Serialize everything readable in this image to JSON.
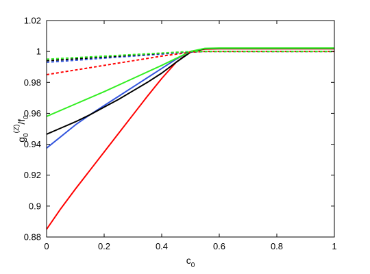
{
  "chart_data": {
    "type": "line",
    "xlabel": "c",
    "xlabel_sub": "0",
    "ylabel_parts": {
      "g": "g",
      "g_sub": "0",
      "g_sup": "(Z)",
      "slash": "/f",
      "f_sub": "0"
    },
    "xlim": [
      0,
      1
    ],
    "ylim": [
      0.88,
      1.02
    ],
    "xticks": [
      0,
      0.2,
      0.4,
      0.6,
      0.8,
      1
    ],
    "xtick_labels": [
      "0",
      "0.2",
      "0.4",
      "0.6",
      "0.8",
      "1"
    ],
    "yticks": [
      0.88,
      0.9,
      0.92,
      0.94,
      0.96,
      0.98,
      1,
      1.02
    ],
    "ytick_labels": [
      "0.88",
      "0.9",
      "0.92",
      "0.94",
      "0.96",
      "0.98",
      "1",
      "1.02"
    ],
    "grid": false,
    "series": [
      {
        "color": "#ff0000",
        "style": "solid",
        "x": [
          0,
          0.05,
          0.1,
          0.15,
          0.2,
          0.25,
          0.3,
          0.35,
          0.4,
          0.45,
          0.5,
          0.55,
          0.6,
          0.7,
          0.8,
          0.9,
          1
        ],
        "y": [
          0.885,
          0.8985,
          0.911,
          0.923,
          0.935,
          0.947,
          0.959,
          0.971,
          0.9825,
          0.993,
          1.0,
          1.0015,
          1.0017,
          1.0017,
          1.0017,
          1.0017,
          1.0017
        ]
      },
      {
        "color": "#3355dd",
        "style": "solid",
        "x": [
          0,
          0.05,
          0.1,
          0.15,
          0.2,
          0.25,
          0.3,
          0.35,
          0.4,
          0.45,
          0.5,
          0.55,
          0.6,
          0.7,
          0.8,
          0.9,
          1
        ],
        "y": [
          0.9375,
          0.945,
          0.9525,
          0.959,
          0.965,
          0.971,
          0.977,
          0.983,
          0.989,
          0.995,
          1.0,
          1.0018,
          1.002,
          1.002,
          1.002,
          1.002,
          1.002
        ]
      },
      {
        "color": "#000000",
        "style": "solid",
        "x": [
          0,
          0.05,
          0.1,
          0.15,
          0.2,
          0.25,
          0.3,
          0.35,
          0.4,
          0.45,
          0.5,
          0.55,
          0.6,
          0.7,
          0.8,
          0.9,
          1
        ],
        "y": [
          0.9465,
          0.9505,
          0.9545,
          0.959,
          0.964,
          0.969,
          0.9745,
          0.98,
          0.986,
          0.993,
          0.9995,
          1.0018,
          1.002,
          1.002,
          1.002,
          1.002,
          1.002
        ]
      },
      {
        "color": "#33ee22",
        "style": "solid",
        "x": [
          0,
          0.1,
          0.2,
          0.3,
          0.4,
          0.45,
          0.5,
          0.55,
          0.6,
          0.7,
          0.8,
          0.9,
          1
        ],
        "y": [
          0.958,
          0.966,
          0.974,
          0.9825,
          0.991,
          0.9955,
          1.0,
          1.002,
          1.0022,
          1.0022,
          1.0022,
          1.0022,
          1.0022
        ]
      },
      {
        "color": "#ff0000",
        "style": "dashed",
        "x": [
          0,
          0.1,
          0.2,
          0.3,
          0.4,
          0.5,
          0.55,
          0.6,
          0.7,
          0.8,
          0.9,
          1
        ],
        "y": [
          0.985,
          0.988,
          0.991,
          0.994,
          0.997,
          0.9995,
          1.0,
          1.0,
          1.0,
          1.0,
          1.0,
          1.0
        ]
      },
      {
        "color": "#3355dd",
        "style": "dashed",
        "x": [
          0,
          0.1,
          0.2,
          0.3,
          0.4,
          0.5,
          0.55,
          0.6,
          0.7,
          0.8,
          0.9,
          1
        ],
        "y": [
          0.993,
          0.9943,
          0.9957,
          0.997,
          0.9983,
          0.9997,
          1.0,
          1.0,
          1.0,
          1.0,
          1.0,
          1.0
        ]
      },
      {
        "color": "#000000",
        "style": "dashed",
        "x": [
          0,
          0.1,
          0.2,
          0.3,
          0.4,
          0.5,
          0.55,
          0.6,
          0.7,
          0.8,
          0.9,
          1
        ],
        "y": [
          0.994,
          0.9952,
          0.9964,
          0.9976,
          0.9988,
          0.9999,
          1.0,
          1.0,
          1.0,
          1.0,
          1.0,
          1.0
        ]
      },
      {
        "color": "#33ee22",
        "style": "dashed",
        "x": [
          0,
          0.1,
          0.2,
          0.3,
          0.4,
          0.5,
          0.55,
          0.6,
          0.7,
          0.8,
          0.9,
          1
        ],
        "y": [
          0.995,
          0.996,
          0.997,
          0.998,
          0.999,
          1.0,
          1.0,
          1.0,
          1.0,
          1.0,
          1.0,
          1.0
        ]
      }
    ]
  }
}
